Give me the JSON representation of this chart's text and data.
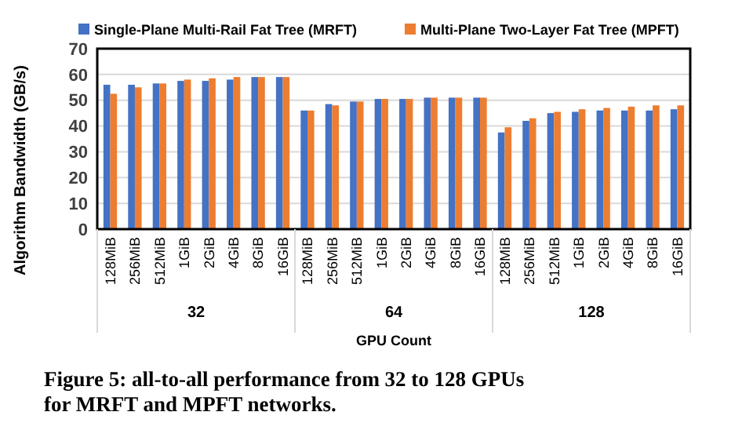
{
  "chart_data": {
    "type": "bar",
    "ylabel": "Algorithm Bandwidth (GB/s)",
    "xlabel": "GPU Count",
    "categories": [
      "128MiB",
      "256MiB",
      "512MiB",
      "1GiB",
      "2GiB",
      "4GiB",
      "8GiB",
      "16GiB",
      "128MiB",
      "256MiB",
      "512MiB",
      "1GiB",
      "2GiB",
      "4GiB",
      "8GiB",
      "16GiB",
      "128MiB",
      "256MiB",
      "512MiB",
      "1GiB",
      "2GiB",
      "4GiB",
      "8GiB",
      "16GiB"
    ],
    "series": [
      {
        "name": "Single-Plane Multi-Rail Fat Tree (MRFT)",
        "color": "#4472c4",
        "values": [
          56,
          56,
          56.5,
          57.5,
          57.5,
          58,
          59,
          59,
          46,
          48.5,
          49.5,
          50.5,
          50.5,
          51,
          51,
          51,
          37.5,
          42,
          45,
          45.5,
          46,
          46,
          46,
          46.5
        ]
      },
      {
        "name": "Multi-Plane Two-Layer Fat Tree (MPFT)",
        "color": "#ed7d31",
        "values": [
          52.5,
          55,
          56.5,
          58,
          58.5,
          59,
          59,
          59,
          46,
          48,
          49.5,
          50.5,
          50.5,
          51,
          51,
          51,
          39.5,
          43,
          45.5,
          46.5,
          47,
          47.5,
          48,
          48
        ]
      }
    ],
    "ylim": [
      0,
      70
    ],
    "yticks": [
      0,
      10,
      20,
      30,
      40,
      50,
      60,
      70
    ],
    "grid": "y",
    "legend": "top",
    "annotations": [
      "32",
      "64",
      "128",
      "Figure 5: all-to-all performance from 32 to 128 GPUs for MRFT and MPFT networks."
    ]
  }
}
